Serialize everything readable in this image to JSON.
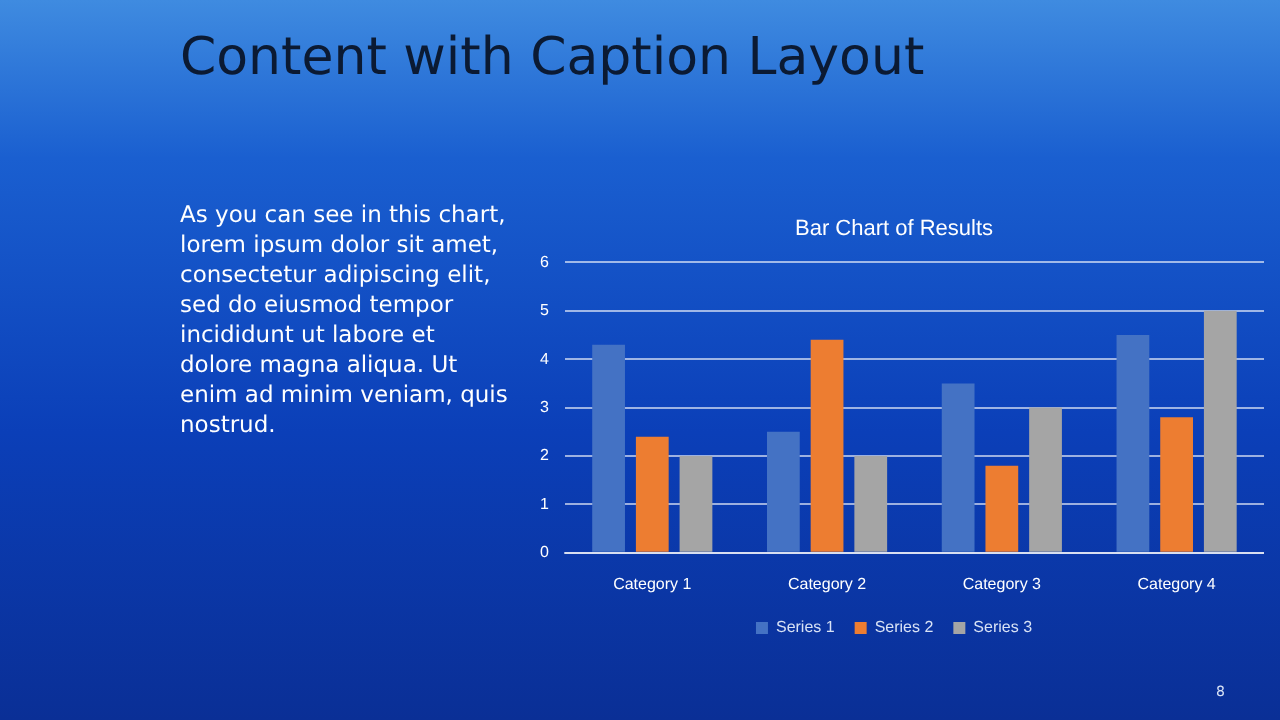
{
  "chart_data": {
    "type": "bar",
    "title": "Content with Caption Layout",
    "subtitle": "Bar Chart of Results",
    "annotations": [
      "As you can see in this chart, lorem ipsum dolor sit amet, consectetur adipiscing elit, sed do eiusmod tempor incididunt ut labore et dolore magna aliqua.  Ut enim ad minim veniam, quis nostrud.",
      "8"
    ],
    "categories": [
      "Category 1",
      "Category 2",
      "Category 3",
      "Category 4"
    ],
    "series": [
      {
        "name": "Series 1",
        "color": "#4472c4",
        "values": [
          4.3,
          2.5,
          3.5,
          4.5
        ]
      },
      {
        "name": "Series 2",
        "color": "#ed7d31",
        "values": [
          2.4,
          4.4,
          1.8,
          2.8
        ]
      },
      {
        "name": "Series 3",
        "color": "#a5a5a5",
        "values": [
          2,
          2,
          3,
          5
        ]
      }
    ],
    "ylim": [
      0,
      6
    ],
    "yticks": [
      0,
      1,
      2,
      3,
      4,
      5,
      6
    ],
    "grid": "y",
    "legend": "bottom"
  }
}
